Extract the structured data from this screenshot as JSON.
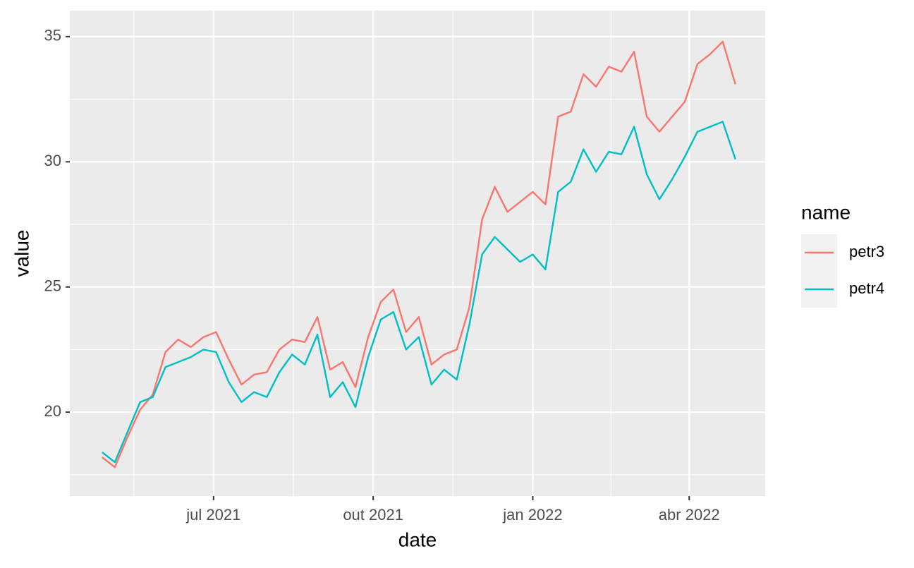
{
  "chart_data": {
    "type": "line",
    "x_label": "date",
    "y_label": "value",
    "x": [
      2021.32,
      2021.34,
      2021.36,
      2021.38,
      2021.4,
      2021.42,
      2021.44,
      2021.46,
      2021.48,
      2021.5,
      2021.52,
      2021.54,
      2021.56,
      2021.58,
      2021.6,
      2021.62,
      2021.64,
      2021.66,
      2021.68,
      2021.7,
      2021.72,
      2021.74,
      2021.76,
      2021.78,
      2021.8,
      2021.82,
      2021.84,
      2021.86,
      2021.88,
      2021.9,
      2021.92,
      2021.94,
      2021.96,
      2021.98,
      2022.0,
      2022.02,
      2022.04,
      2022.06,
      2022.08,
      2022.1,
      2022.12,
      2022.14,
      2022.16,
      2022.18,
      2022.2,
      2022.22,
      2022.24,
      2022.26,
      2022.28,
      2022.3,
      2022.32
    ],
    "series": [
      {
        "name": "petr3",
        "color": "#F8766D",
        "values": [
          18.2,
          17.8,
          19.0,
          20.1,
          20.7,
          22.4,
          22.9,
          22.6,
          23.0,
          23.2,
          22.1,
          21.1,
          21.5,
          21.6,
          22.5,
          22.9,
          22.8,
          23.8,
          21.7,
          22.0,
          21.0,
          23.0,
          24.4,
          24.9,
          23.2,
          23.8,
          21.9,
          22.3,
          22.5,
          24.2,
          27.7,
          29.0,
          28.0,
          28.4,
          28.8,
          28.3,
          31.8,
          32.0,
          33.5,
          33.0,
          33.8,
          33.6,
          34.4,
          31.8,
          31.2,
          31.8,
          32.4,
          33.9,
          34.3,
          34.8,
          33.1
        ]
      },
      {
        "name": "petr4",
        "color": "#00BFC4",
        "values": [
          18.4,
          18.0,
          19.2,
          20.4,
          20.6,
          21.8,
          22.0,
          22.2,
          22.5,
          22.4,
          21.2,
          20.4,
          20.8,
          20.6,
          21.6,
          22.3,
          21.9,
          23.1,
          20.6,
          21.2,
          20.2,
          22.2,
          23.7,
          24.0,
          22.5,
          23.0,
          21.1,
          21.7,
          21.3,
          23.5,
          26.3,
          27.0,
          26.5,
          26.0,
          26.3,
          25.7,
          28.8,
          29.2,
          30.5,
          29.6,
          30.4,
          30.3,
          31.4,
          29.5,
          28.5,
          29.3,
          30.2,
          31.2,
          31.4,
          31.6,
          30.1
        ]
      }
    ],
    "xlim": [
      2021.269,
      2022.367
    ],
    "xticks": [
      {
        "value": 2021.496,
        "label": "jul 2021"
      },
      {
        "value": 2021.748,
        "label": "out 2021"
      },
      {
        "value": 2022.0,
        "label": "jan 2022"
      },
      {
        "value": 2022.247,
        "label": "abr 2022"
      }
    ],
    "ylim": [
      16.65,
      36.04
    ],
    "yticks": [
      20,
      25,
      30,
      35
    ],
    "grid": true,
    "legend_title": "name",
    "legend_position": "right"
  }
}
